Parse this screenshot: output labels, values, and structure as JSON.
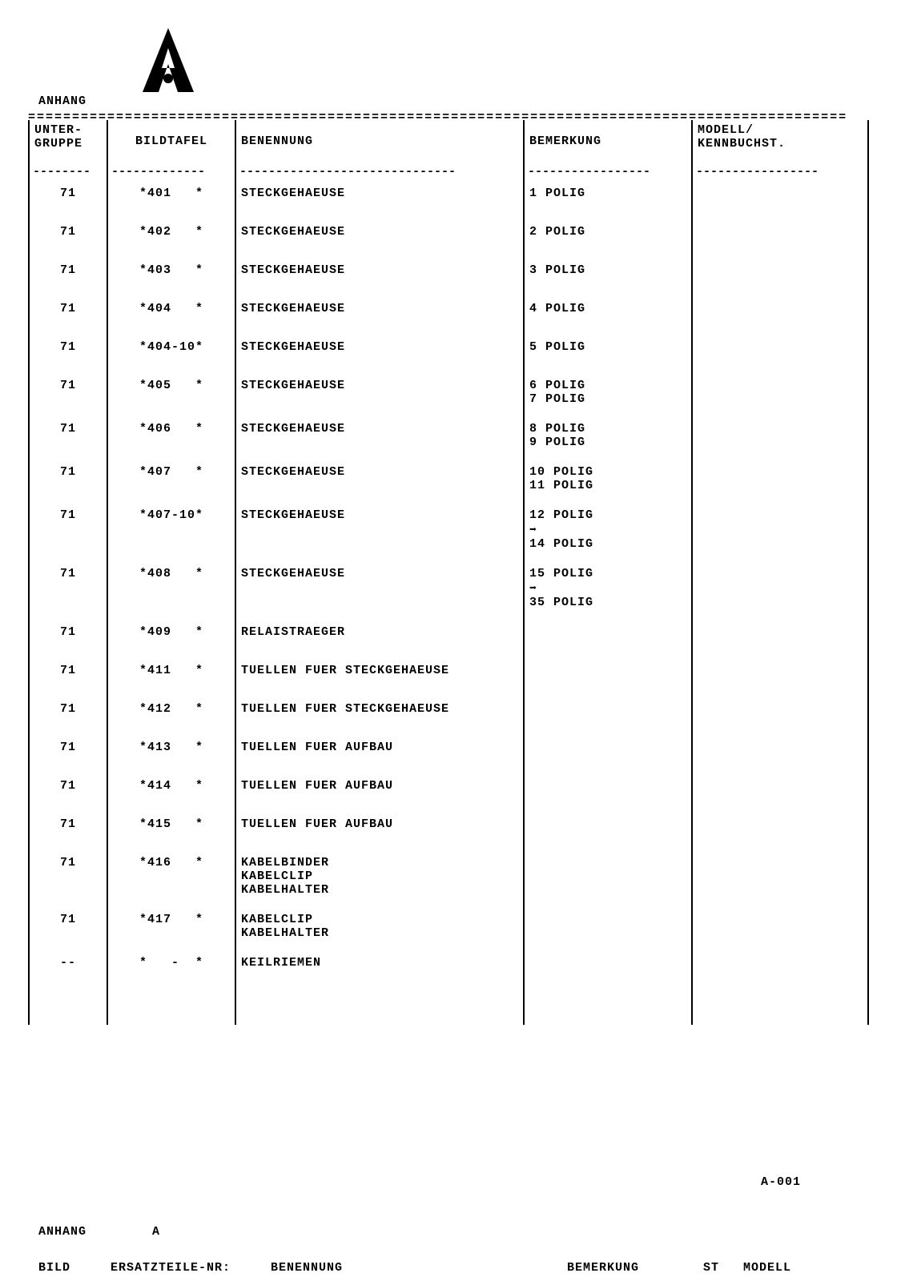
{
  "header": {
    "title": "ANHANG",
    "separator": "=============================================================================================",
    "page_code": "A-001",
    "footer_title": "ANHANG",
    "footer_a": "A",
    "footer_bild": "BILD",
    "footer_ersatz": "ERSATZTEILE-NR:",
    "footer_benennung": "BENENNUNG",
    "footer_bemerkung": "BEMERKUNG",
    "footer_st": "ST",
    "footer_modell": "MODELL"
  },
  "columns": {
    "c1a": "UNTER-",
    "c1b": "GRUPPE",
    "c2": "BILDTAFEL",
    "c3": "BENENNUNG",
    "c4": "BEMERKUNG",
    "c5a": "MODELL/",
    "c5b": "KENNBUCHST."
  },
  "dashes": {
    "d1": "--------",
    "d2": "-------------",
    "d3": "------------------------------",
    "d4": "-----------------",
    "d5": "-----------------"
  },
  "rows": [
    {
      "ug": "71",
      "bt": "*401   *",
      "ben": "STECKGEHAEUSE",
      "bem": "1 POLIG",
      "mk": ""
    },
    {
      "ug": "71",
      "bt": "*402   *",
      "ben": "STECKGEHAEUSE",
      "bem": "2 POLIG",
      "mk": ""
    },
    {
      "ug": "71",
      "bt": "*403   *",
      "ben": "STECKGEHAEUSE",
      "bem": "3 POLIG",
      "mk": ""
    },
    {
      "ug": "71",
      "bt": "*404   *",
      "ben": "STECKGEHAEUSE",
      "bem": "4 POLIG",
      "mk": ""
    },
    {
      "ug": "71",
      "bt": "*404-10*",
      "ben": "STECKGEHAEUSE",
      "bem": "5 POLIG",
      "mk": ""
    },
    {
      "ug": "71",
      "bt": "*405   *",
      "ben": "STECKGEHAEUSE",
      "bem": "6 POLIG\n7 POLIG",
      "mk": ""
    },
    {
      "ug": "71",
      "bt": "*406   *",
      "ben": "STECKGEHAEUSE",
      "bem": "8 POLIG\n9 POLIG",
      "mk": ""
    },
    {
      "ug": "71",
      "bt": "*407   *",
      "ben": "STECKGEHAEUSE",
      "bem": "10 POLIG\n11 POLIG",
      "mk": ""
    },
    {
      "ug": "71",
      "bt": "*407-10*",
      "ben": "STECKGEHAEUSE",
      "bem": "12 POLIG\n➡\n14 POLIG",
      "mk": ""
    },
    {
      "ug": "71",
      "bt": "*408   *",
      "ben": "STECKGEHAEUSE",
      "bem": "15 POLIG\n➡\n35 POLIG",
      "mk": ""
    },
    {
      "ug": "71",
      "bt": "*409   *",
      "ben": "RELAISTRAEGER",
      "bem": "",
      "mk": ""
    },
    {
      "ug": "71",
      "bt": "*411   *",
      "ben": "TUELLEN FUER STECKGEHAEUSE",
      "bem": "",
      "mk": ""
    },
    {
      "ug": "71",
      "bt": "*412   *",
      "ben": "TUELLEN FUER STECKGEHAEUSE",
      "bem": "",
      "mk": ""
    },
    {
      "ug": "71",
      "bt": "*413   *",
      "ben": "TUELLEN FUER AUFBAU",
      "bem": "",
      "mk": ""
    },
    {
      "ug": "71",
      "bt": "*414   *",
      "ben": "TUELLEN FUER AUFBAU",
      "bem": "",
      "mk": ""
    },
    {
      "ug": "71",
      "bt": "*415   *",
      "ben": "TUELLEN FUER AUFBAU",
      "bem": "",
      "mk": ""
    },
    {
      "ug": "71",
      "bt": "*416   *",
      "ben": "KABELBINDER\nKABELCLIP\nKABELHALTER",
      "bem": "",
      "mk": ""
    },
    {
      "ug": "71",
      "bt": "*417   *",
      "ben": "KABELCLIP\nKABELHALTER",
      "bem": "",
      "mk": ""
    },
    {
      "ug": "--",
      "bt": "*   -  *",
      "ben": "KEILRIEMEN",
      "bem": "",
      "mk": ""
    },
    {
      "ug": "",
      "bt": "",
      "ben": "",
      "bem": "",
      "mk": ""
    }
  ]
}
